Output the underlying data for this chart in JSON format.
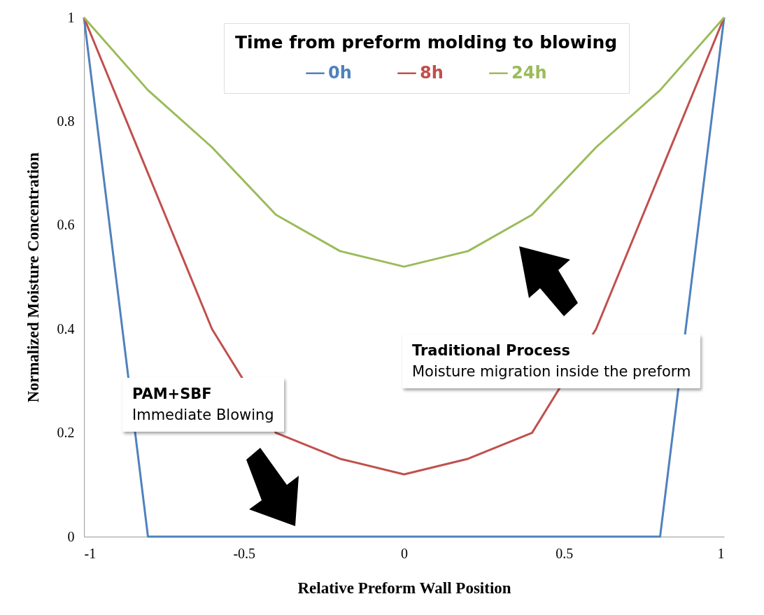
{
  "chart_data": {
    "type": "line",
    "xlabel": "Relative Preform Wall Position",
    "ylabel": "Normalized Moisture Concentration",
    "legend_title": "Time from preform molding to blowing",
    "legend": "top",
    "x": [
      -1,
      -0.8,
      -0.6,
      -0.4,
      -0.2,
      0,
      0.2,
      0.4,
      0.6,
      0.8,
      1
    ],
    "series": [
      {
        "name": "0h",
        "color": "#4f81bd",
        "values": [
          1,
          0,
          0,
          0,
          0,
          0,
          0,
          0,
          0,
          0,
          1
        ]
      },
      {
        "name": "8h",
        "color": "#c0504d",
        "values": [
          1,
          0.7,
          0.4,
          0.2,
          0.15,
          0.12,
          0.15,
          0.2,
          0.4,
          0.7,
          1
        ]
      },
      {
        "name": "24h",
        "color": "#9bbb59",
        "values": [
          1,
          0.86,
          0.75,
          0.62,
          0.55,
          0.52,
          0.55,
          0.62,
          0.75,
          0.86,
          1
        ]
      }
    ],
    "xlim": [
      -1,
      1
    ],
    "xticks": [
      -1,
      -0.5,
      0,
      0.5,
      1
    ],
    "ylim": [
      0,
      1
    ],
    "yticks": [
      0,
      0.2,
      0.4,
      0.6,
      0.8,
      1
    ],
    "grid": false,
    "marker": "none",
    "line_style": "solid",
    "annotations": [
      "PAM+SBF",
      "Immediate Blowing",
      "Traditional Process",
      "Moisture migration inside the preform"
    ]
  }
}
